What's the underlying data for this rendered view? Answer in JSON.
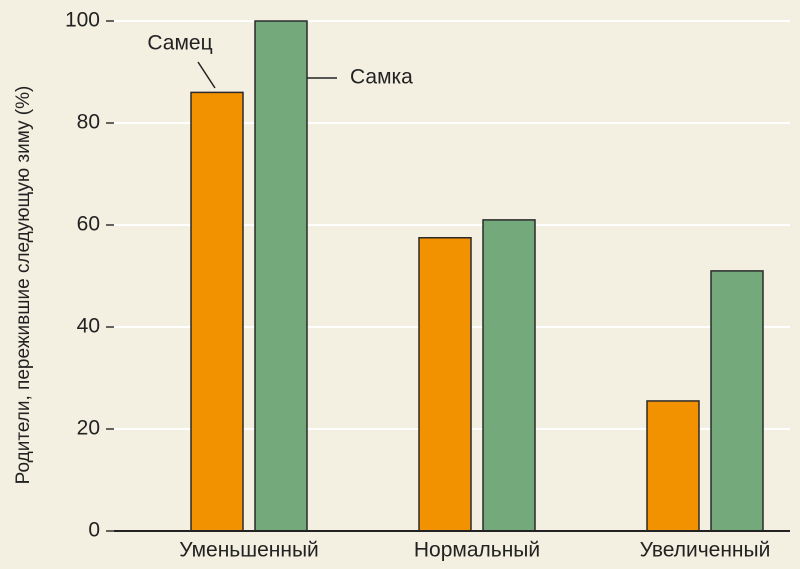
{
  "chart_data": {
    "type": "bar",
    "y_label": "Родители, пережившие следующую зиму (%)",
    "categories": [
      "Уменьшенный",
      "Нормальный",
      "Увеличенный"
    ],
    "series": [
      {
        "name": "Самец",
        "color": "#f39200",
        "values": [
          86,
          57.5,
          25.5
        ]
      },
      {
        "name": "Самка",
        "color": "#74a97c",
        "values": [
          100,
          61,
          51
        ]
      }
    ],
    "ylim": [
      0,
      100
    ],
    "yticks": [
      0,
      20,
      40,
      60,
      80,
      100
    ],
    "grid": true
  }
}
